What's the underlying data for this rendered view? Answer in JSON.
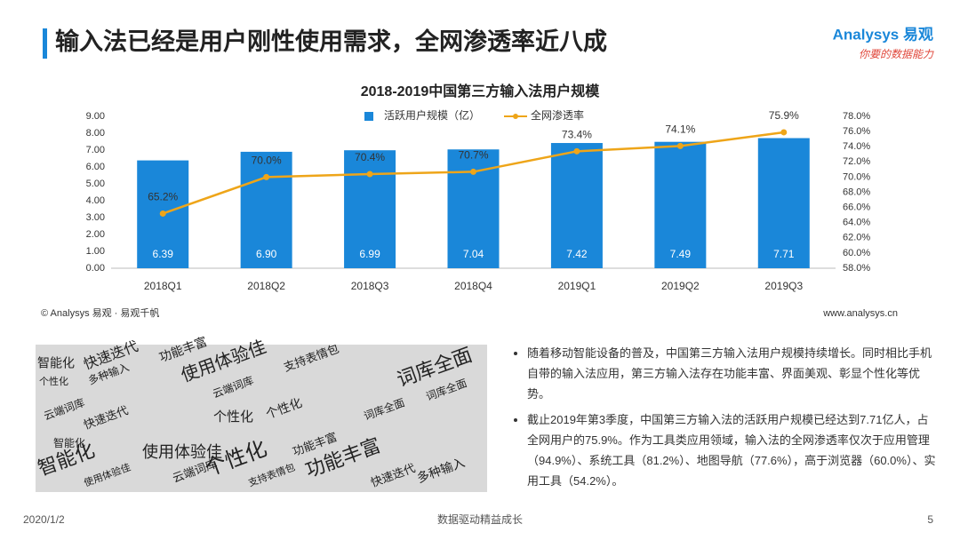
{
  "header": {
    "title": "输入法已经是用户刚性使用需求，全网渗透率近八成",
    "logo": "Analysys 易观",
    "logo_slogan": "你要的数据能力"
  },
  "chart_data": {
    "type": "bar",
    "title": "2018-2019中国第三方输入法用户规模",
    "categories": [
      "2018Q1",
      "2018Q2",
      "2018Q3",
      "2018Q4",
      "2019Q1",
      "2019Q2",
      "2019Q3"
    ],
    "series": [
      {
        "name": "活跃用户规模（亿）",
        "type": "bar",
        "color": "#1a87d9",
        "values": [
          6.39,
          6.9,
          6.99,
          7.04,
          7.42,
          7.49,
          7.71
        ],
        "value_labels": [
          "6.39",
          "6.90",
          "6.99",
          "7.04",
          "7.42",
          "7.49",
          "7.71"
        ]
      },
      {
        "name": "全网渗透率",
        "type": "line",
        "axis": "y2",
        "color": "#eea519",
        "values": [
          65.2,
          70.0,
          70.4,
          70.7,
          73.4,
          74.1,
          75.9
        ],
        "value_labels": [
          "65.2%",
          "70.0%",
          "70.4%",
          "70.7%",
          "73.4%",
          "74.1%",
          "75.9%"
        ]
      }
    ],
    "ylim": [
      0,
      9
    ],
    "yticks": [
      {
        "value": 0,
        "label": "0.00"
      },
      {
        "value": 1,
        "label": "1.00"
      },
      {
        "value": 2,
        "label": "2.00"
      },
      {
        "value": 3,
        "label": "3.00"
      },
      {
        "value": 4,
        "label": "4.00"
      },
      {
        "value": 5,
        "label": "5.00"
      },
      {
        "value": 6,
        "label": "6.00"
      },
      {
        "value": 7,
        "label": "7.00"
      },
      {
        "value": 8,
        "label": "8.00"
      },
      {
        "value": 9,
        "label": "9.00"
      }
    ],
    "y2lim": [
      58,
      78
    ],
    "y2ticks": [
      {
        "value": 58,
        "label": "58.0%"
      },
      {
        "value": 60,
        "label": "60.0%"
      },
      {
        "value": 62,
        "label": "62.0%"
      },
      {
        "value": 64,
        "label": "64.0%"
      },
      {
        "value": 66,
        "label": "66.0%"
      },
      {
        "value": 68,
        "label": "68.0%"
      },
      {
        "value": 70,
        "label": "70.0%"
      },
      {
        "value": 72,
        "label": "72.0%"
      },
      {
        "value": 74,
        "label": "74.0%"
      },
      {
        "value": 76,
        "label": "76.0%"
      },
      {
        "value": 78,
        "label": "78.0%"
      }
    ],
    "legend": "top",
    "source": "© Analysys 易观 · 易观千帆",
    "website": "www.analysys.cn"
  },
  "word_cloud": [
    "智能化",
    "快速迭代",
    "功能丰富",
    "使用体验佳",
    "支持表情包",
    "词库全面",
    "个性化",
    "多种输入",
    "云端词库",
    "词库全面",
    "个性化",
    "智能化",
    "快速迭代",
    "使用体验佳",
    "个性化",
    "云端词库",
    "功能丰富",
    "智能化",
    "个性化",
    "功能丰富",
    "快速迭代",
    "多种输入",
    "使用体验佳",
    "支持表情包",
    "云端词库",
    "词库全面"
  ],
  "bullets": [
    "随着移动智能设备的普及，中国第三方输入法用户规模持续增长。同时相比手机自带的输入法应用，第三方输入法存在功能丰富、界面美观、彰显个性化等优势。",
    "截止2019年第3季度，中国第三方输入法的活跃用户规模已经达到7.71亿人，占全网用户的75.9%。作为工具类应用领域，输入法的全网渗透率仅次于应用管理（94.9%）、系统工具（81.2%）、地图导航（77.6%），高于浏览器（60.0%）、实用工具（54.2%）。"
  ],
  "footer": {
    "date": "2020/1/2",
    "slogan": "数据驱动精益成长",
    "page": "5"
  }
}
